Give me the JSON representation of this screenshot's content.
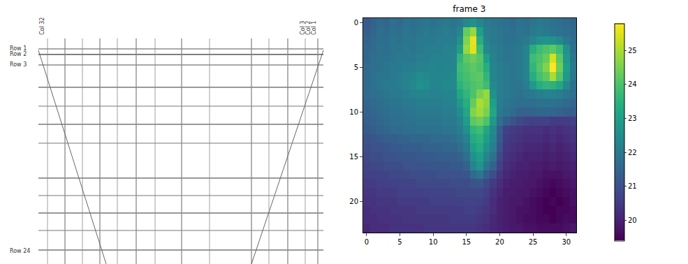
{
  "diagram": {
    "row_labels": [
      "Row 1",
      "Row 2",
      "Row 3",
      "Row 24"
    ],
    "column_labels": [
      "Col 32",
      "Col 3",
      "Col 2",
      "Col 1"
    ]
  },
  "chart_data": {
    "type": "heatmap",
    "title": "frame 3",
    "color": "viridis",
    "xlim": [
      -0.5,
      31.5
    ],
    "xticks": [
      0,
      5,
      10,
      15,
      20,
      25,
      30
    ],
    "ylim": [
      23.5,
      -0.5
    ],
    "yticks": [
      0,
      5,
      10,
      15,
      20
    ],
    "color_range": [
      19.4,
      25.8
    ],
    "color_ticks": [
      20,
      21,
      22,
      23,
      24,
      25
    ],
    "cells": [
      [
        21.2,
        21.4,
        21.6,
        21.5,
        21.7,
        21.6,
        21.8,
        21.7,
        21.8,
        21.9,
        21.8,
        21.9,
        22.0,
        21.9,
        22.0,
        22.4,
        22.6,
        22.3,
        22.0,
        21.9,
        21.8,
        21.7,
        21.6,
        21.8,
        21.7,
        21.9,
        22.0,
        21.9,
        21.8,
        21.7,
        21.6,
        21.5
      ],
      [
        21.3,
        21.5,
        21.7,
        21.6,
        21.8,
        21.7,
        21.9,
        21.8,
        21.9,
        22.0,
        21.9,
        22.0,
        22.1,
        22.0,
        22.3,
        24.3,
        24.8,
        23.0,
        22.1,
        22.0,
        21.9,
        21.8,
        21.7,
        21.9,
        21.8,
        22.0,
        22.1,
        22.0,
        21.9,
        21.8,
        21.7,
        21.6
      ],
      [
        21.4,
        21.6,
        21.7,
        21.7,
        21.9,
        21.8,
        21.9,
        21.9,
        22.0,
        22.0,
        22.0,
        22.1,
        22.1,
        22.1,
        22.6,
        24.6,
        25.6,
        23.4,
        22.2,
        22.0,
        21.9,
        21.8,
        21.8,
        21.9,
        22.0,
        22.3,
        22.6,
        22.7,
        22.6,
        22.4,
        22.0,
        21.7
      ],
      [
        21.5,
        21.6,
        21.8,
        21.7,
        21.9,
        21.9,
        22.0,
        21.9,
        22.0,
        22.1,
        22.1,
        22.1,
        22.2,
        22.2,
        23.0,
        24.8,
        25.5,
        23.8,
        22.4,
        22.1,
        22.0,
        21.9,
        21.9,
        22.0,
        22.2,
        23.4,
        23.8,
        24.0,
        24.2,
        23.8,
        22.6,
        21.8
      ],
      [
        21.5,
        21.7,
        21.8,
        21.8,
        21.9,
        22.0,
        22.0,
        22.0,
        22.1,
        22.1,
        22.2,
        22.2,
        22.2,
        22.3,
        23.6,
        24.2,
        24.4,
        24.1,
        23.0,
        22.2,
        22.0,
        21.9,
        21.9,
        22.0,
        22.3,
        23.8,
        24.0,
        24.3,
        25.4,
        24.2,
        22.8,
        21.9
      ],
      [
        21.6,
        21.7,
        21.8,
        21.9,
        22.0,
        22.0,
        22.1,
        22.1,
        22.2,
        22.2,
        22.3,
        22.2,
        22.3,
        22.3,
        23.8,
        24.0,
        24.2,
        24.0,
        23.4,
        22.3,
        22.1,
        22.0,
        21.9,
        22.0,
        22.3,
        23.6,
        24.1,
        24.6,
        25.8,
        24.4,
        23.0,
        22.0
      ],
      [
        21.6,
        21.8,
        21.9,
        21.9,
        22.0,
        22.1,
        22.2,
        22.3,
        22.5,
        22.4,
        22.3,
        22.3,
        22.3,
        22.4,
        23.7,
        23.9,
        24.1,
        24.2,
        23.6,
        22.3,
        22.1,
        22.0,
        21.9,
        22.0,
        22.2,
        23.4,
        23.9,
        24.2,
        25.0,
        24.1,
        22.8,
        21.9
      ],
      [
        21.6,
        21.8,
        21.9,
        22.0,
        22.0,
        22.1,
        22.2,
        22.4,
        22.6,
        22.5,
        22.3,
        22.3,
        22.4,
        22.4,
        23.5,
        23.8,
        24.0,
        24.1,
        23.8,
        22.4,
        22.1,
        22.0,
        21.9,
        21.9,
        22.1,
        22.8,
        23.4,
        23.6,
        23.5,
        23.2,
        22.4,
        21.8
      ],
      [
        21.6,
        21.7,
        21.8,
        21.9,
        22.0,
        22.0,
        22.1,
        22.2,
        22.3,
        22.3,
        22.2,
        22.2,
        22.3,
        22.3,
        23.2,
        23.6,
        24.0,
        24.5,
        24.8,
        22.6,
        22.1,
        22.0,
        21.9,
        21.8,
        21.9,
        22.0,
        22.1,
        22.2,
        22.2,
        22.1,
        21.9,
        21.7
      ],
      [
        21.5,
        21.6,
        21.7,
        21.8,
        21.9,
        21.9,
        22.0,
        22.0,
        22.1,
        22.1,
        22.1,
        22.1,
        22.2,
        22.2,
        22.8,
        23.4,
        24.3,
        25.0,
        24.7,
        23.0,
        22.1,
        21.9,
        21.8,
        21.7,
        21.7,
        21.7,
        21.8,
        21.8,
        21.8,
        21.7,
        21.6,
        21.5
      ],
      [
        21.4,
        21.5,
        21.6,
        21.7,
        21.8,
        21.8,
        21.9,
        21.9,
        22.0,
        22.0,
        22.0,
        22.0,
        22.1,
        22.1,
        22.5,
        23.2,
        24.6,
        24.9,
        24.5,
        23.2,
        22.0,
        21.8,
        21.6,
        21.4,
        21.4,
        21.4,
        21.5,
        21.5,
        21.5,
        21.4,
        21.3,
        21.3
      ],
      [
        21.3,
        21.4,
        21.5,
        21.6,
        21.7,
        21.7,
        21.8,
        21.8,
        21.9,
        21.9,
        21.9,
        21.9,
        22.0,
        22.0,
        22.3,
        22.9,
        24.2,
        24.4,
        24.0,
        22.8,
        21.7,
        21.3,
        21.0,
        20.8,
        20.7,
        20.6,
        20.6,
        20.6,
        20.5,
        20.5,
        20.5,
        20.6
      ],
      [
        21.2,
        21.3,
        21.4,
        21.5,
        21.6,
        21.6,
        21.7,
        21.7,
        21.8,
        21.8,
        21.8,
        21.8,
        21.9,
        21.9,
        22.1,
        22.6,
        23.6,
        23.8,
        23.2,
        22.4,
        21.3,
        20.6,
        20.5,
        20.4,
        20.3,
        20.3,
        20.3,
        20.2,
        20.3,
        20.2,
        20.3,
        20.4
      ],
      [
        21.0,
        21.1,
        21.2,
        21.3,
        21.3,
        21.4,
        21.4,
        21.5,
        21.5,
        21.5,
        21.6,
        21.6,
        21.6,
        21.7,
        21.9,
        22.2,
        23.3,
        23.5,
        22.9,
        22.3,
        21.2,
        20.5,
        20.4,
        20.3,
        20.2,
        20.2,
        20.2,
        20.1,
        20.2,
        20.1,
        20.2,
        20.3
      ],
      [
        20.9,
        21.0,
        21.0,
        21.1,
        21.2,
        21.2,
        21.3,
        21.3,
        21.3,
        21.4,
        21.4,
        21.4,
        21.5,
        21.5,
        21.7,
        22.0,
        23.0,
        23.3,
        22.6,
        22.1,
        21.0,
        20.4,
        20.3,
        20.2,
        20.1,
        20.1,
        20.1,
        20.0,
        20.1,
        20.0,
        20.1,
        20.2
      ],
      [
        20.8,
        20.9,
        20.9,
        21.0,
        21.0,
        21.1,
        21.1,
        21.1,
        21.2,
        21.2,
        21.2,
        21.3,
        21.3,
        21.3,
        21.4,
        21.7,
        22.6,
        23.0,
        22.3,
        21.8,
        20.8,
        20.3,
        20.2,
        20.1,
        20.0,
        20.0,
        20.0,
        19.9,
        20.0,
        19.9,
        20.0,
        20.1
      ],
      [
        20.7,
        20.8,
        20.8,
        20.9,
        20.9,
        20.9,
        21.0,
        21.0,
        21.0,
        21.1,
        21.1,
        21.1,
        21.1,
        21.2,
        21.2,
        21.4,
        22.3,
        22.7,
        21.9,
        21.4,
        20.6,
        20.2,
        20.1,
        20.0,
        20.0,
        19.9,
        19.9,
        19.8,
        19.9,
        19.8,
        19.9,
        20.0
      ],
      [
        20.6,
        20.6,
        20.7,
        20.7,
        20.8,
        20.8,
        20.8,
        20.9,
        20.9,
        20.9,
        20.9,
        21.0,
        21.0,
        21.0,
        21.0,
        21.1,
        21.6,
        21.9,
        21.3,
        20.9,
        20.4,
        20.1,
        20.0,
        19.9,
        19.9,
        19.8,
        19.8,
        19.7,
        19.7,
        19.7,
        19.8,
        19.9
      ],
      [
        20.5,
        20.5,
        20.6,
        20.6,
        20.6,
        20.7,
        20.7,
        20.7,
        20.8,
        20.8,
        20.8,
        20.8,
        20.8,
        20.9,
        20.9,
        20.9,
        21.0,
        21.1,
        20.8,
        20.5,
        20.2,
        20.0,
        19.9,
        19.9,
        19.8,
        19.8,
        19.7,
        19.6,
        19.5,
        19.6,
        19.7,
        19.8
      ],
      [
        20.4,
        20.4,
        20.5,
        20.5,
        20.5,
        20.6,
        20.6,
        20.6,
        20.6,
        20.7,
        20.7,
        20.7,
        20.7,
        20.7,
        20.8,
        20.8,
        20.8,
        20.8,
        20.6,
        20.3,
        20.1,
        19.9,
        19.9,
        19.8,
        19.8,
        19.7,
        19.6,
        19.5,
        19.4,
        19.5,
        19.6,
        19.7
      ],
      [
        20.3,
        20.3,
        20.4,
        20.4,
        20.4,
        20.5,
        20.5,
        20.5,
        20.5,
        20.5,
        20.6,
        20.6,
        20.6,
        20.6,
        20.6,
        20.7,
        20.7,
        20.6,
        20.5,
        20.2,
        20.0,
        19.9,
        19.8,
        19.8,
        19.7,
        19.6,
        19.5,
        19.4,
        19.5,
        19.4,
        19.5,
        19.7
      ],
      [
        20.2,
        20.3,
        20.3,
        20.3,
        20.4,
        20.4,
        20.4,
        20.4,
        20.5,
        20.5,
        20.5,
        20.5,
        20.5,
        20.5,
        20.5,
        20.6,
        20.6,
        20.5,
        20.4,
        20.2,
        20.0,
        19.9,
        19.8,
        19.7,
        19.7,
        19.6,
        19.5,
        19.4,
        19.4,
        19.5,
        19.5,
        19.6
      ],
      [
        20.2,
        20.2,
        20.3,
        20.3,
        20.3,
        20.3,
        20.4,
        20.4,
        20.4,
        20.4,
        20.4,
        20.4,
        20.4,
        20.5,
        20.5,
        20.5,
        20.5,
        20.4,
        20.3,
        20.1,
        20.0,
        19.9,
        19.8,
        19.7,
        19.6,
        19.6,
        19.5,
        19.5,
        19.4,
        19.5,
        19.6,
        19.6
      ],
      [
        20.1,
        20.2,
        20.2,
        20.2,
        20.3,
        20.3,
        20.3,
        20.3,
        20.3,
        20.4,
        20.4,
        20.4,
        20.4,
        20.4,
        20.4,
        20.4,
        20.4,
        20.3,
        20.2,
        20.1,
        20.0,
        19.9,
        19.8,
        19.8,
        19.7,
        19.7,
        19.6,
        19.6,
        19.6,
        19.6,
        19.7,
        19.8
      ]
    ]
  }
}
